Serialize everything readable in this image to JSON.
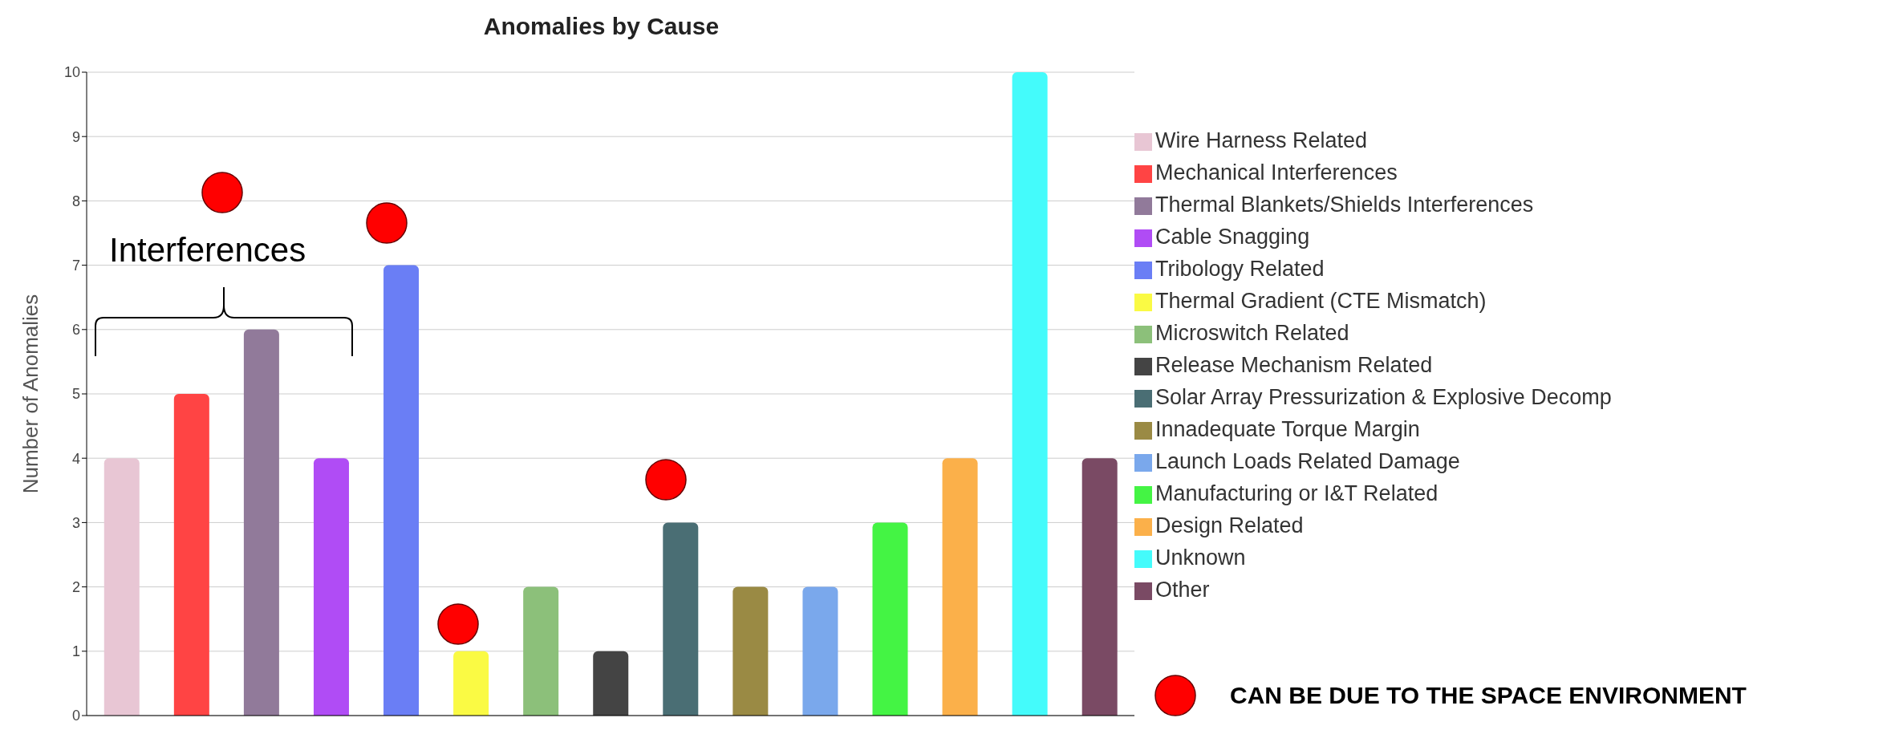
{
  "chart_data": {
    "type": "bar",
    "title": "Anomalies by Cause",
    "ylabel": "Number of Anomalies",
    "categories": [
      null,
      null,
      null,
      null,
      null,
      null,
      null,
      null,
      null,
      null,
      null,
      null,
      null,
      null,
      null
    ],
    "stacked": true,
    "tick_labels": "y",
    "grid": "y",
    "legend": "right",
    "ylim": [
      0,
      10
    ],
    "yticks": [
      0,
      1,
      2,
      3,
      4,
      5,
      6,
      7,
      8,
      9,
      10
    ],
    "annotations": [
      "Interferences",
      "CAN BE DUE TO THE SPACE ENVIRONMENT"
    ],
    "series": [
      {
        "name": "Wire Harness Related",
        "color": "#e8c6d4",
        "values": [
          4,
          null,
          null,
          null,
          null,
          null,
          null,
          null,
          null,
          null,
          null,
          null,
          null,
          null,
          null
        ]
      },
      {
        "name": "Mechanical Interferences",
        "color": "#ff4444",
        "values": [
          null,
          5,
          null,
          null,
          null,
          null,
          null,
          null,
          null,
          null,
          null,
          null,
          null,
          null,
          null
        ]
      },
      {
        "name": "Thermal Blankets/Shields Interferences",
        "color": "#917a9a",
        "values": [
          null,
          null,
          6,
          null,
          null,
          null,
          null,
          null,
          null,
          null,
          null,
          null,
          null,
          null,
          null
        ]
      },
      {
        "name": "Cable Snagging",
        "color": "#b04cf5",
        "values": [
          null,
          null,
          null,
          4,
          null,
          null,
          null,
          null,
          null,
          null,
          null,
          null,
          null,
          null,
          null
        ]
      },
      {
        "name": "Tribology Related",
        "color": "#6a7ef5",
        "values": [
          null,
          null,
          null,
          null,
          7,
          null,
          null,
          null,
          null,
          null,
          null,
          null,
          null,
          null,
          null
        ]
      },
      {
        "name": "Thermal Gradient (CTE Mismatch)",
        "color": "#fafa44",
        "values": [
          null,
          null,
          null,
          null,
          null,
          1,
          null,
          null,
          null,
          null,
          null,
          null,
          null,
          null,
          null
        ]
      },
      {
        "name": "Microswitch Related",
        "color": "#8cc07a",
        "values": [
          null,
          null,
          null,
          null,
          null,
          null,
          2,
          null,
          null,
          null,
          null,
          null,
          null,
          null,
          null
        ]
      },
      {
        "name": "Release Mechanism Related",
        "color": "#444444",
        "values": [
          null,
          null,
          null,
          null,
          null,
          null,
          null,
          1,
          null,
          null,
          null,
          null,
          null,
          null,
          null
        ]
      },
      {
        "name": "Solar Array Pressurization & Explosive Decomp",
        "color": "#4a6e74",
        "values": [
          null,
          null,
          null,
          null,
          null,
          null,
          null,
          null,
          3,
          null,
          null,
          null,
          null,
          null,
          null
        ]
      },
      {
        "name": "Innadequate Torque Margin",
        "color": "#9a8a44",
        "values": [
          null,
          null,
          null,
          null,
          null,
          null,
          null,
          null,
          null,
          2,
          null,
          null,
          null,
          null,
          null
        ]
      },
      {
        "name": "Launch Loads Related Damage",
        "color": "#7aa8ec",
        "values": [
          null,
          null,
          null,
          null,
          null,
          null,
          null,
          null,
          null,
          null,
          2,
          null,
          null,
          null,
          null
        ]
      },
      {
        "name": "Manufacturing or I&T Related",
        "color": "#44f444",
        "values": [
          null,
          null,
          null,
          null,
          null,
          null,
          null,
          null,
          null,
          null,
          null,
          3,
          null,
          null,
          null
        ]
      },
      {
        "name": "Design Related",
        "color": "#fbb04a",
        "values": [
          null,
          null,
          null,
          null,
          null,
          null,
          null,
          null,
          null,
          null,
          null,
          null,
          4,
          null,
          null
        ]
      },
      {
        "name": "Unknown",
        "color": "#44fbfb",
        "values": [
          null,
          null,
          null,
          null,
          null,
          null,
          null,
          null,
          null,
          null,
          null,
          null,
          null,
          10,
          null
        ]
      },
      {
        "name": "Other",
        "color": "#7a4a64",
        "values": [
          null,
          null,
          null,
          null,
          null,
          null,
          null,
          null,
          null,
          null,
          null,
          null,
          null,
          null,
          4
        ]
      }
    ]
  }
}
